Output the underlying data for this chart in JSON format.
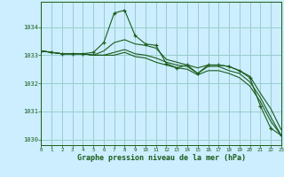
{
  "title": "Graphe pression niveau de la mer (hPa)",
  "bg_color": "#cceeff",
  "grid_color": "#99cccc",
  "line_color": "#1a5c1a",
  "xlim": [
    0,
    23
  ],
  "ylim": [
    1029.8,
    1034.9
  ],
  "yticks": [
    1030,
    1031,
    1032,
    1033,
    1034
  ],
  "xticks": [
    0,
    1,
    2,
    3,
    4,
    5,
    6,
    7,
    8,
    9,
    10,
    11,
    12,
    13,
    14,
    15,
    16,
    17,
    18,
    19,
    20,
    21,
    22,
    23
  ],
  "series": [
    {
      "x": [
        0,
        1,
        2,
        3,
        4,
        5,
        6,
        7,
        8,
        9,
        10,
        11,
        12,
        13,
        14,
        15,
        16,
        17,
        18,
        19,
        20,
        21,
        22,
        23
      ],
      "y": [
        1033.15,
        1033.1,
        1033.05,
        1033.05,
        1033.05,
        1033.1,
        1033.45,
        1034.5,
        1034.6,
        1033.7,
        1033.4,
        1033.35,
        1032.7,
        1032.55,
        1032.65,
        1032.35,
        1032.65,
        1032.65,
        1032.6,
        1032.45,
        1032.2,
        1031.2,
        1030.4,
        1030.15
      ],
      "has_markers": true
    },
    {
      "x": [
        0,
        1,
        2,
        3,
        4,
        5,
        6,
        7,
        8,
        9,
        10,
        11,
        12,
        13,
        14,
        15,
        16,
        17,
        18,
        19,
        20,
        21,
        22,
        23
      ],
      "y": [
        1033.15,
        1033.1,
        1033.05,
        1033.05,
        1033.05,
        1033.0,
        1033.15,
        1033.45,
        1033.55,
        1033.4,
        1033.35,
        1033.25,
        1032.85,
        1032.75,
        1032.65,
        1032.55,
        1032.65,
        1032.65,
        1032.6,
        1032.45,
        1032.25,
        1031.65,
        1031.1,
        1030.35
      ],
      "has_markers": false
    },
    {
      "x": [
        0,
        1,
        2,
        3,
        4,
        5,
        6,
        7,
        8,
        9,
        10,
        11,
        12,
        13,
        14,
        15,
        16,
        17,
        18,
        19,
        20,
        21,
        22,
        23
      ],
      "y": [
        1033.15,
        1033.1,
        1033.05,
        1033.05,
        1033.05,
        1033.0,
        1033.0,
        1033.1,
        1033.2,
        1033.05,
        1033.0,
        1032.9,
        1032.75,
        1032.65,
        1032.6,
        1032.35,
        1032.6,
        1032.6,
        1032.45,
        1032.35,
        1032.05,
        1031.5,
        1030.8,
        1030.15
      ],
      "has_markers": false
    },
    {
      "x": [
        0,
        1,
        2,
        3,
        4,
        5,
        6,
        7,
        8,
        9,
        10,
        11,
        12,
        13,
        14,
        15,
        16,
        17,
        18,
        19,
        20,
        21,
        22,
        23
      ],
      "y": [
        1033.15,
        1033.1,
        1033.05,
        1033.05,
        1033.05,
        1033.0,
        1033.0,
        1033.0,
        1033.1,
        1032.95,
        1032.9,
        1032.75,
        1032.65,
        1032.55,
        1032.5,
        1032.3,
        1032.45,
        1032.45,
        1032.35,
        1032.2,
        1031.9,
        1031.35,
        1030.65,
        1030.15
      ],
      "has_markers": false
    }
  ]
}
